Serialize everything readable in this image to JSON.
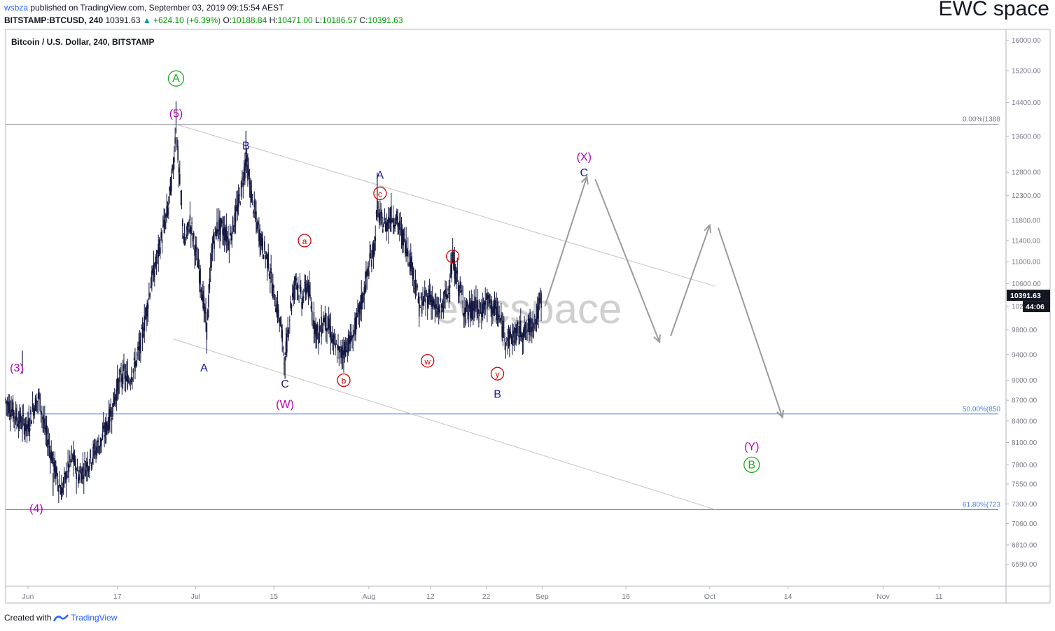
{
  "header": {
    "user": "wsbza",
    "published": "published on TradingView.com, September 03, 2019 09:15:54 AEST",
    "symbol_line": "BITSTAMP:BTCUSD, 240",
    "last_price": "10391.63",
    "change": "+624.10 (+6.39%)",
    "open_label": "O:",
    "open": "10188.84",
    "high_label": "H:",
    "high": "10471.00",
    "low_label": "L:",
    "low": "10186.57",
    "close_label": "C:",
    "close": "10391.63"
  },
  "brand": "EWC space",
  "watermark": "ewcspace",
  "pane_title": "Bitcoin / U.S. Dollar, 240, BITSTAMP",
  "footer": {
    "prefix": "Created with",
    "brand": "TradingView"
  },
  "price_badge": {
    "value": "10391.63",
    "countdown": "44:06"
  },
  "chart_data": {
    "type": "candlestick",
    "symbol": "BTCUSD",
    "timeframe": "240",
    "y_axis": {
      "scale": "log",
      "ticks": [
        "16000.00",
        "15200.00",
        "14400.00",
        "13600.00",
        "12800.00",
        "12300.00",
        "11800.00",
        "11400.00",
        "11000.00",
        "10600.00",
        "10200.00",
        "9800.00",
        "9400.00",
        "9000.00",
        "8700.00",
        "8400.00",
        "8100.00",
        "7800.00",
        "7550.00",
        "7300.00",
        "7060.00",
        "6810.00",
        "6590.00"
      ],
      "range": [
        6350,
        16300
      ]
    },
    "x_axis": {
      "ticks": [
        "Jun",
        "17",
        "Jul",
        "15",
        "Aug",
        "12",
        "22",
        "Sep",
        "16",
        "Oct",
        "14",
        "Nov",
        "11"
      ],
      "tick_days": [
        0,
        16,
        30,
        44,
        61,
        72,
        82,
        92,
        107,
        122,
        136,
        153,
        163
      ],
      "range_days": [
        -4,
        175
      ]
    },
    "price_path": [
      [
        -4,
        8700
      ],
      [
        -2,
        8450
      ],
      [
        0,
        8300
      ],
      [
        1,
        8600
      ],
      [
        2,
        8750
      ],
      [
        3,
        8300
      ],
      [
        4,
        8000
      ],
      [
        5,
        7700
      ],
      [
        6,
        7450
      ],
      [
        7,
        7700
      ],
      [
        8,
        7900
      ],
      [
        9,
        7650
      ],
      [
        10,
        7750
      ],
      [
        11,
        7850
      ],
      [
        12,
        8000
      ],
      [
        13,
        8100
      ],
      [
        14,
        8300
      ],
      [
        15,
        8550
      ],
      [
        16,
        8900
      ],
      [
        17,
        9100
      ],
      [
        18,
        9000
      ],
      [
        19,
        9200
      ],
      [
        20,
        9500
      ],
      [
        21,
        10000
      ],
      [
        22,
        10600
      ],
      [
        23,
        11000
      ],
      [
        24,
        11500
      ],
      [
        25,
        12000
      ],
      [
        26,
        12900
      ],
      [
        26.5,
        13880
      ],
      [
        27,
        12800
      ],
      [
        28,
        11300
      ],
      [
        29,
        11800
      ],
      [
        30,
        11200
      ],
      [
        31,
        10600
      ],
      [
        32,
        9800
      ],
      [
        33,
        11300
      ],
      [
        34,
        11700
      ],
      [
        35,
        11600
      ],
      [
        36,
        11400
      ],
      [
        37,
        11800
      ],
      [
        38,
        12300
      ],
      [
        39,
        13100
      ],
      [
        40,
        12300
      ],
      [
        41,
        11700
      ],
      [
        42,
        11300
      ],
      [
        43,
        11000
      ],
      [
        44,
        10400
      ],
      [
        45,
        10000
      ],
      [
        46,
        9300
      ],
      [
        47,
        10200
      ],
      [
        48,
        10700
      ],
      [
        49,
        10300
      ],
      [
        50,
        10600
      ],
      [
        51,
        10000
      ],
      [
        52,
        9700
      ],
      [
        53,
        10000
      ],
      [
        54,
        9800
      ],
      [
        55,
        9500
      ],
      [
        56,
        9400
      ],
      [
        57,
        9550
      ],
      [
        58,
        9650
      ],
      [
        59,
        10000
      ],
      [
        60,
        10400
      ],
      [
        61,
        10900
      ],
      [
        62,
        11300
      ],
      [
        62.5,
        12050
      ],
      [
        63,
        11800
      ],
      [
        64,
        11700
      ],
      [
        65,
        11900
      ],
      [
        66,
        11800
      ],
      [
        67,
        11500
      ],
      [
        68,
        11200
      ],
      [
        69,
        10800
      ],
      [
        70,
        10200
      ],
      [
        71,
        10300
      ],
      [
        72,
        10400
      ],
      [
        73,
        10100
      ],
      [
        74,
        10200
      ],
      [
        75,
        10400
      ],
      [
        76,
        11000
      ],
      [
        77,
        10600
      ],
      [
        78,
        10200
      ],
      [
        79,
        10100
      ],
      [
        80,
        10200
      ],
      [
        81,
        10100
      ],
      [
        82,
        10300
      ],
      [
        83,
        10200
      ],
      [
        84,
        10100
      ],
      [
        85,
        9800
      ],
      [
        86,
        9650
      ],
      [
        87,
        9700
      ],
      [
        88,
        9800
      ],
      [
        89,
        9750
      ],
      [
        90,
        9900
      ],
      [
        91,
        10000
      ],
      [
        92,
        10391.63
      ]
    ],
    "horizontal_levels": [
      {
        "label": "0.00%(1388",
        "price": 13880,
        "color": "#787b86"
      },
      {
        "label": "50.00%(850",
        "price": 8500,
        "color": "#4a7fe8"
      },
      {
        "label": "61.80%(723",
        "price": 7230,
        "color": "#4a7fe8"
      }
    ],
    "channel_lines": [
      {
        "from": [
          26.5,
          13880
        ],
        "to": [
          123,
          10550
        ]
      },
      {
        "from": [
          26,
          9650
        ],
        "to": [
          123,
          7230
        ]
      }
    ],
    "projection_path": [
      [
        92.5,
        10200
      ],
      [
        100,
        12700
      ],
      [
        101.5,
        12650
      ],
      [
        113,
        9600
      ],
      [
        115,
        9700
      ],
      [
        122,
        11700
      ],
      [
        123.5,
        11650
      ],
      [
        135,
        8450
      ]
    ],
    "wave_labels": [
      {
        "text": "A",
        "x": 26.5,
        "price": 15000,
        "color": "#22a822",
        "circled": true
      },
      {
        "text": "(5)",
        "x": 26.5,
        "price": 14150,
        "color": "#b000b0"
      },
      {
        "text": "(3)",
        "x": -2,
        "price": 9200,
        "color": "#b000b0"
      },
      {
        "text": "(4)",
        "x": 1.5,
        "price": 7250,
        "color": "#b000b0"
      },
      {
        "text": "B",
        "x": 39,
        "price": 13400,
        "color": "#1a1aa0"
      },
      {
        "text": "A",
        "x": 31.5,
        "price": 9200,
        "color": "#1a1aa0"
      },
      {
        "text": "C",
        "x": 46,
        "price": 8950,
        "color": "#1a1aa0"
      },
      {
        "text": "(W)",
        "x": 46,
        "price": 8650,
        "color": "#b000b0"
      },
      {
        "text": "a",
        "x": 49.5,
        "price": 11400,
        "color": "#cc0000",
        "circled": true
      },
      {
        "text": "b",
        "x": 56.5,
        "price": 9000,
        "color": "#cc0000",
        "circled": true
      },
      {
        "text": "A",
        "x": 63,
        "price": 12750,
        "color": "#1a1aa0"
      },
      {
        "text": "c",
        "x": 63,
        "price": 12350,
        "color": "#cc0000",
        "circled": true
      },
      {
        "text": "x",
        "x": 76,
        "price": 11100,
        "color": "#cc0000",
        "circled": true
      },
      {
        "text": "w",
        "x": 71.5,
        "price": 9300,
        "color": "#cc0000",
        "circled": true
      },
      {
        "text": "y",
        "x": 84,
        "price": 9100,
        "color": "#cc0000",
        "circled": true
      },
      {
        "text": "B",
        "x": 84,
        "price": 8800,
        "color": "#1a1aa0"
      },
      {
        "text": "(X)",
        "x": 99.5,
        "price": 13150,
        "color": "#b000b0"
      },
      {
        "text": "C",
        "x": 99.5,
        "price": 12800,
        "color": "#1a1aa0"
      },
      {
        "text": "(Y)",
        "x": 129.5,
        "price": 8050,
        "color": "#b000b0"
      },
      {
        "text": "B",
        "x": 129.5,
        "price": 7800,
        "color": "#22a822",
        "circled": true
      }
    ]
  },
  "colors": {
    "candle": "#131740",
    "grid_border": "#b2b5be",
    "text_muted": "#787b86",
    "projection": "#9b9b9b",
    "badge_bg": "#131722"
  }
}
